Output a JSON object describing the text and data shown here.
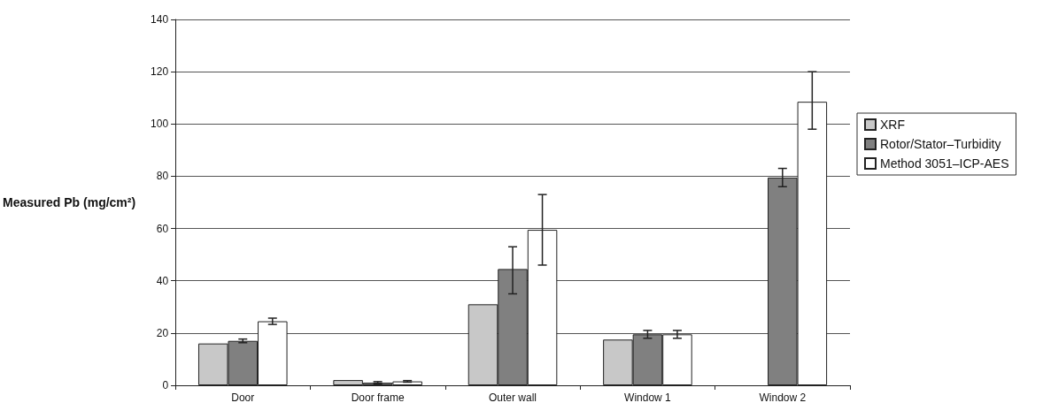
{
  "chart_data": {
    "type": "bar",
    "ylabel": "Measured Pb (mg/cm²)",
    "categories": [
      "Door",
      "Door frame",
      "Outer wall",
      "Window 1",
      "Window 2"
    ],
    "series": [
      {
        "name": "XRF",
        "color": "#c8c8c8",
        "values": [
          16,
          2,
          31,
          17.5,
          null
        ]
      },
      {
        "name": "Rotor/Stator–Turbidity",
        "color": "#808080",
        "values": [
          17,
          1,
          44.5,
          19.5,
          79.5
        ],
        "errors": [
          0.7,
          0.4,
          [
            35,
            53
          ],
          1.5,
          [
            76,
            83
          ]
        ]
      },
      {
        "name": "Method 3051–ICP-AES",
        "color": "#ffffff",
        "values": [
          24.5,
          1.5,
          59.5,
          19.5,
          108.5
        ],
        "errors": [
          1.2,
          0.3,
          [
            46,
            73
          ],
          1.5,
          [
            98,
            120
          ]
        ]
      }
    ],
    "ylim": [
      0,
      140
    ],
    "yticks": [
      0,
      20,
      40,
      60,
      80,
      100,
      120,
      140
    ],
    "grid": "y",
    "legend": "right"
  }
}
